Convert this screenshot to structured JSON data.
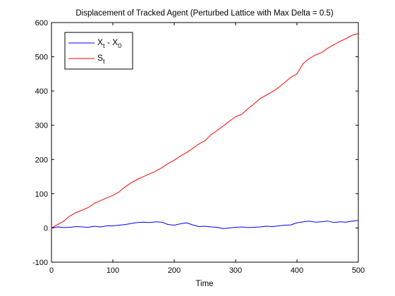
{
  "chart_data": {
    "type": "line",
    "title": "Displacement of Tracked Agent (Perturbed Lattice with Max Delta = 0.5)",
    "xlabel": "Time",
    "ylabel": "",
    "xlim": [
      0,
      500
    ],
    "ylim": [
      -100,
      600
    ],
    "xticks": [
      0,
      100,
      200,
      300,
      400,
      500
    ],
    "yticks": [
      -100,
      0,
      100,
      200,
      300,
      400,
      500,
      600
    ],
    "grid": false,
    "legend": {
      "position": "top-left"
    },
    "series": [
      {
        "label_base": "X",
        "label_sub1": "t",
        "label_mid": " - X",
        "label_sub2": "0",
        "color": "#0000ff",
        "x": [
          0,
          10,
          20,
          30,
          40,
          50,
          60,
          70,
          80,
          90,
          100,
          110,
          120,
          130,
          140,
          150,
          160,
          170,
          180,
          190,
          200,
          210,
          220,
          230,
          240,
          250,
          260,
          270,
          280,
          290,
          300,
          310,
          320,
          330,
          340,
          350,
          360,
          370,
          380,
          390,
          400,
          410,
          420,
          430,
          440,
          450,
          460,
          470,
          480,
          490,
          500
        ],
        "y": [
          0,
          3,
          1,
          2,
          4,
          3,
          2,
          5,
          3,
          6,
          6,
          8,
          10,
          13,
          16,
          17,
          16,
          18,
          17,
          10,
          8,
          12,
          15,
          9,
          4,
          5,
          3,
          2,
          -2,
          0,
          2,
          3,
          1,
          2,
          3,
          5,
          4,
          6,
          8,
          9,
          15,
          18,
          20,
          17,
          18,
          20,
          16,
          18,
          17,
          20,
          22
        ]
      },
      {
        "label_base": "S",
        "label_sub1": "t",
        "label_mid": "",
        "label_sub2": "",
        "color": "#ff0000",
        "x": [
          0,
          10,
          20,
          30,
          40,
          50,
          60,
          70,
          80,
          90,
          100,
          110,
          120,
          130,
          140,
          150,
          160,
          170,
          180,
          190,
          200,
          210,
          220,
          230,
          240,
          250,
          260,
          270,
          280,
          290,
          300,
          310,
          320,
          330,
          340,
          350,
          360,
          370,
          380,
          390,
          400,
          410,
          420,
          430,
          440,
          450,
          460,
          470,
          480,
          490,
          500
        ],
        "y": [
          0,
          10,
          20,
          35,
          45,
          52,
          60,
          72,
          80,
          88,
          95,
          105,
          120,
          132,
          142,
          150,
          158,
          166,
          176,
          188,
          198,
          210,
          220,
          232,
          245,
          255,
          272,
          285,
          298,
          312,
          325,
          332,
          348,
          362,
          378,
          388,
          398,
          410,
          425,
          440,
          450,
          480,
          495,
          505,
          512,
          525,
          535,
          545,
          553,
          563,
          568
        ]
      }
    ]
  }
}
